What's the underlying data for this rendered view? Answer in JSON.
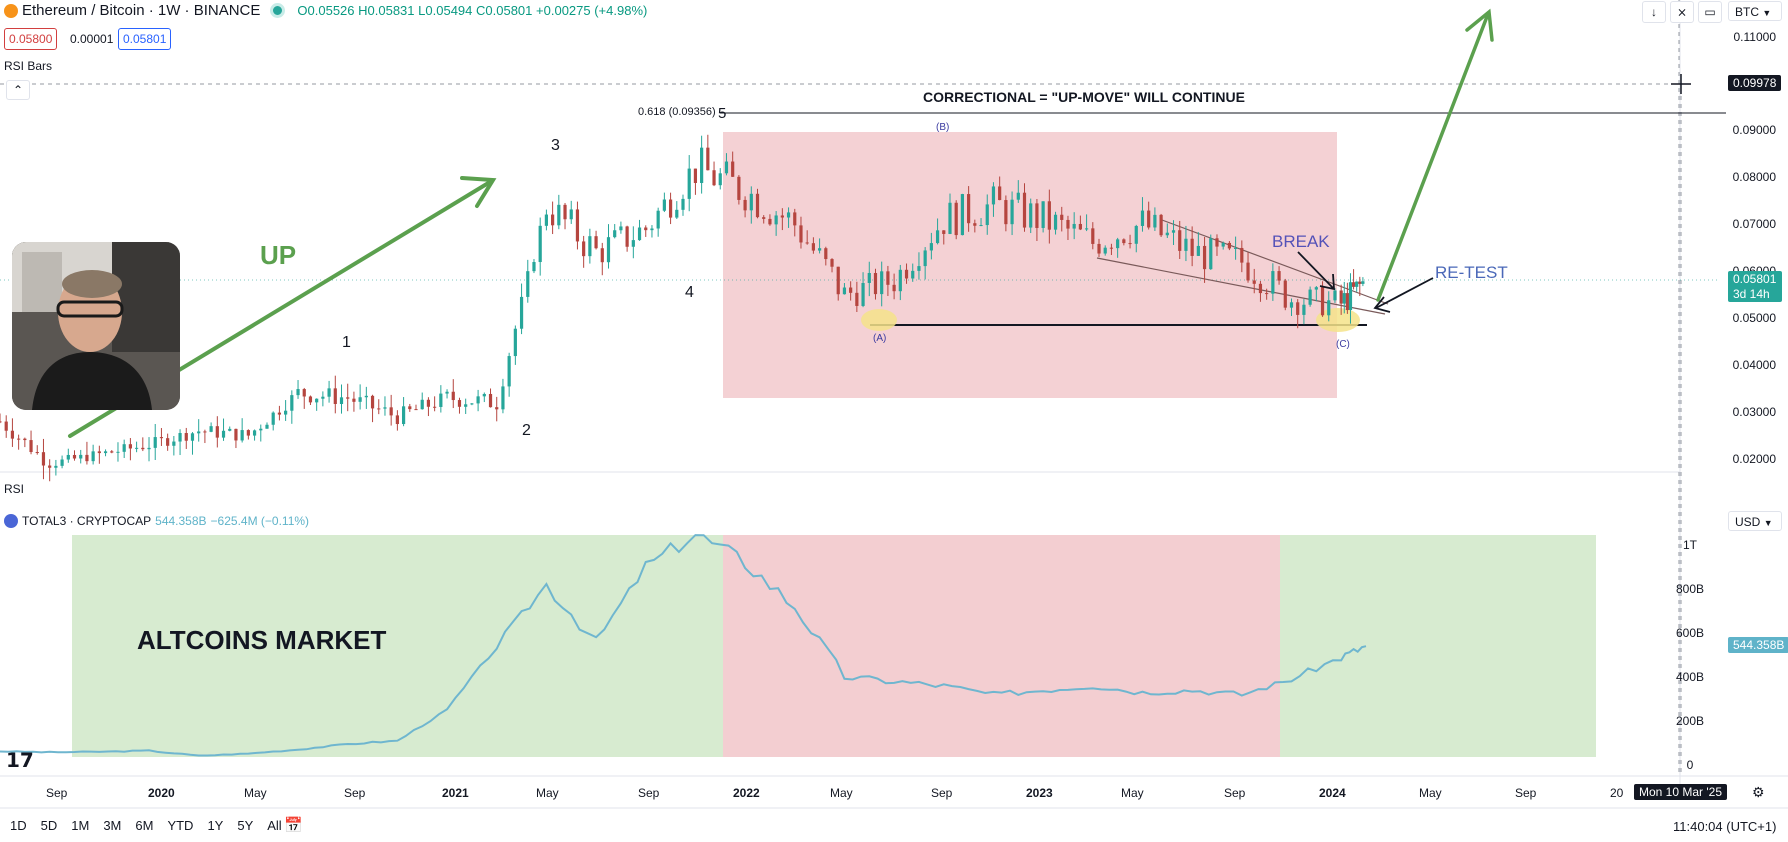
{
  "header": {
    "symbol": "Ethereum / Bitcoin · 1W · BINANCE",
    "ohlc": {
      "o": "O0.05526",
      "h": "H0.05831",
      "l": "L0.05494",
      "c": "C0.05801",
      "chg": "+0.00275 (+4.98%)"
    },
    "bid": "0.05800",
    "spread": "0.00001",
    "ask": "0.05801",
    "indicator1": "RSI Bars"
  },
  "top_right": {
    "currency": "BTC"
  },
  "upper_axis": {
    "ticks": [
      "0.11000",
      "0.09000",
      "0.08000",
      "0.07000",
      "0.06000",
      "0.05000",
      "0.04000",
      "0.03000",
      "0.02000"
    ],
    "crosshair_value": "0.09978",
    "last_price": "0.05801",
    "countdown": "3d 14h"
  },
  "annotations": {
    "fib": "0.618 (0.09356)",
    "wave5": "5",
    "title": "CORRECTIONAL = \"UP-MOVE\" WILL CONTINUE",
    "up": "UP",
    "w1": "1",
    "w2": "2",
    "w3": "3",
    "w4": "4",
    "a": "(A)",
    "b": "(B)",
    "c": "(C)",
    "break": "BREAK",
    "retest": "RE-TEST"
  },
  "lower": {
    "rsi_label": "RSI",
    "symbol": "TOTAL3 · CRYPTOCAP",
    "value": "544.358B",
    "change": "−625.4M (−0.11%)",
    "currency": "USD",
    "ticks": [
      "1T",
      "800B",
      "600B",
      "400B",
      "200B",
      "0"
    ],
    "last": "544.358B",
    "caption": "ALTCOINS MARKET"
  },
  "x_axis": {
    "labels": [
      "Sep",
      "2020",
      "May",
      "Sep",
      "2021",
      "May",
      "Sep",
      "2022",
      "May",
      "Sep",
      "2023",
      "May",
      "Sep",
      "2024",
      "May",
      "Sep",
      "20"
    ],
    "crosshair_date": "Mon 10 Mar '25"
  },
  "bottom_bar": {
    "ranges": [
      "1D",
      "5D",
      "1M",
      "3M",
      "6M",
      "YTD",
      "1Y",
      "5Y",
      "All"
    ],
    "clock": "11:40:04 (UTC+1)"
  },
  "colors": {
    "up": "#26a69a",
    "down": "#b5453f",
    "zone_red": "#f2c9cc",
    "zone_green": "#d7ebd0",
    "arrow": "#5ba04e",
    "line": "#6fb6cf"
  },
  "chart_data": [
    {
      "type": "candlestick",
      "title": "Ethereum / Bitcoin · 1W · BINANCE",
      "x": [
        "2019-07",
        "2019-09",
        "2019-11",
        "2020-01",
        "2020-03",
        "2020-05",
        "2020-07",
        "2020-09",
        "2020-11",
        "2021-01",
        "2021-03",
        "2021-05",
        "2021-07",
        "2021-09",
        "2021-11",
        "2022-01",
        "2022-03",
        "2022-05",
        "2022-07",
        "2022-09",
        "2022-11",
        "2023-01",
        "2023-03",
        "2023-05",
        "2023-07",
        "2023-09",
        "2023-11",
        "2024-01",
        "2024-02"
      ],
      "close": [
        0.028,
        0.019,
        0.021,
        0.023,
        0.026,
        0.025,
        0.034,
        0.033,
        0.029,
        0.033,
        0.032,
        0.074,
        0.064,
        0.069,
        0.082,
        0.077,
        0.07,
        0.055,
        0.058,
        0.071,
        0.074,
        0.071,
        0.066,
        0.07,
        0.064,
        0.062,
        0.054,
        0.053,
        0.058
      ],
      "ylim": [
        0.015,
        0.112
      ]
    },
    {
      "type": "line",
      "title": "TOTAL3 · CRYPTOCAP",
      "x": [
        "2019-07",
        "2019-09",
        "2019-11",
        "2020-01",
        "2020-03",
        "2020-05",
        "2020-07",
        "2020-09",
        "2020-11",
        "2021-01",
        "2021-03",
        "2021-05",
        "2021-07",
        "2021-09",
        "2021-11",
        "2022-01",
        "2022-03",
        "2022-05",
        "2022-07",
        "2022-09",
        "2022-11",
        "2023-01",
        "2023-03",
        "2023-05",
        "2023-07",
        "2023-09",
        "2023-11",
        "2024-01",
        "2024-02"
      ],
      "values": [
        62,
        58,
        60,
        65,
        42,
        52,
        70,
        95,
        110,
        250,
        540,
        820,
        560,
        900,
        1050,
        920,
        720,
        400,
        380,
        360,
        320,
        340,
        360,
        330,
        340,
        320,
        390,
        490,
        540
      ],
      "unit": "B",
      "ylim": [
        0,
        1050
      ]
    }
  ]
}
